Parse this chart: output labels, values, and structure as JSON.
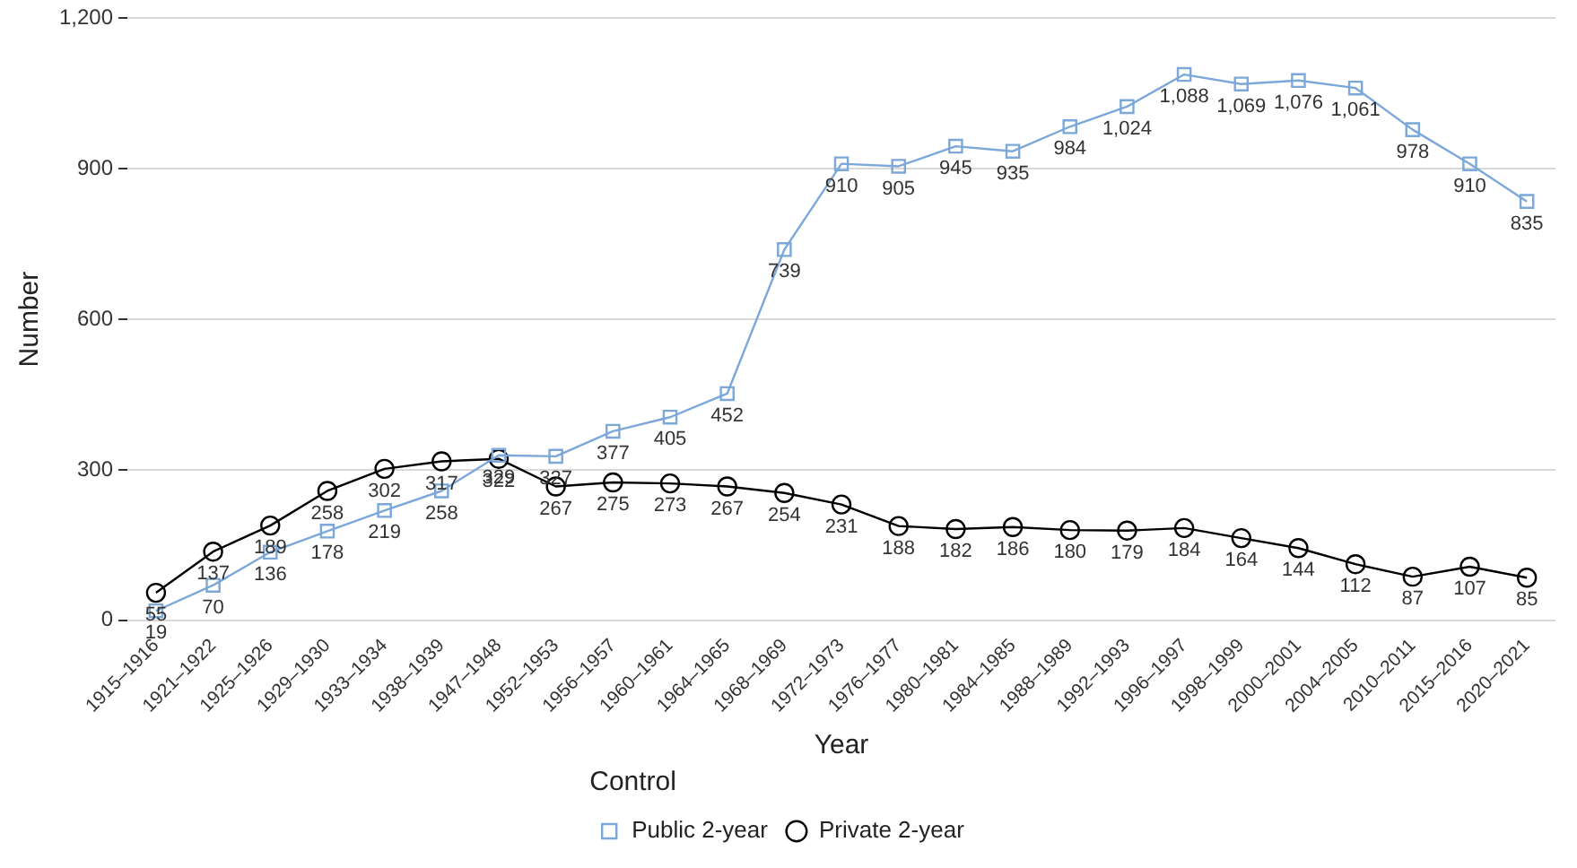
{
  "chart_data": {
    "type": "line",
    "xlabel": "Year",
    "ylabel": "Number",
    "legend_title": "Control",
    "legend": "bottom",
    "grid": "y",
    "categories": [
      "1915–1916",
      "1921–1922",
      "1925–1926",
      "1929–1930",
      "1933–1934",
      "1938–1939",
      "1947–1948",
      "1952–1953",
      "1956–1957",
      "1960–1961",
      "1964–1965",
      "1968–1969",
      "1972–1973",
      "1976–1977",
      "1980–1981",
      "1984–1985",
      "1988–1989",
      "1992–1993",
      "1996–1997",
      "1998–1999",
      "2000–2001",
      "2004–2005",
      "2010–2011",
      "2015–2016",
      "2020–2021"
    ],
    "ylim": [
      0,
      1200
    ],
    "yticks": [
      0,
      300,
      600,
      900,
      {
        "value": 1200,
        "label": "1,200"
      }
    ],
    "series": [
      {
        "name": "Public 2‑year",
        "color": "#7ba7d9",
        "marker": "square",
        "values": [
          19,
          70,
          136,
          178,
          219,
          258,
          329,
          327,
          377,
          405,
          452,
          739,
          910,
          905,
          945,
          935,
          984,
          1024,
          1088,
          1069,
          1076,
          1061,
          978,
          910,
          835
        ],
        "value_labels": [
          "19",
          "70",
          "136",
          "178",
          "219",
          "258",
          "329",
          "327",
          "377",
          "405",
          "452",
          "739",
          "910",
          "905",
          "945",
          "935",
          "984",
          "1,024",
          "1,088",
          "1,069",
          "1,076",
          "1,061",
          "978",
          "910",
          "835"
        ]
      },
      {
        "name": "Private 2‑year",
        "color": "#000000",
        "marker": "circle",
        "values": [
          55,
          137,
          189,
          258,
          302,
          317,
          322,
          267,
          275,
          273,
          267,
          254,
          231,
          188,
          182,
          186,
          180,
          179,
          184,
          164,
          144,
          112,
          87,
          107,
          85
        ],
        "value_labels": [
          "55",
          "137",
          "189",
          "258",
          "302",
          "317",
          "322",
          "267",
          "275",
          "273",
          "267",
          "254",
          "231",
          "188",
          "182",
          "186",
          "180",
          "179",
          "184",
          "164",
          "144",
          "112",
          "87",
          "107",
          "85"
        ]
      }
    ]
  }
}
